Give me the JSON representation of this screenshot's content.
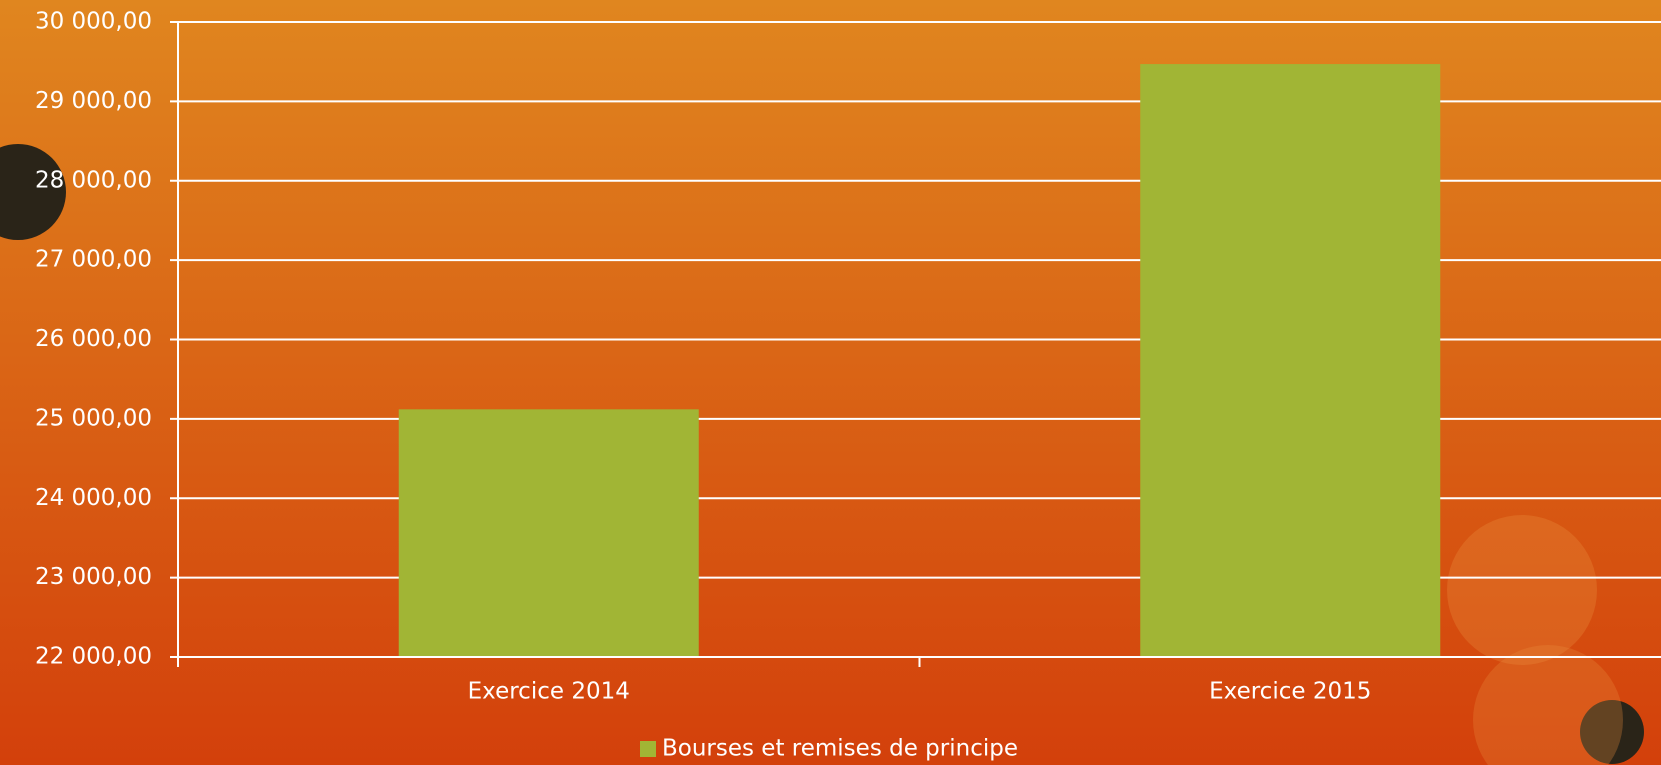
{
  "chart_data": {
    "type": "bar",
    "categories": [
      "Exercice 2014",
      "Exercice 2015"
    ],
    "series": [
      {
        "name": "Bourses et remises de principe",
        "color": "#a1b535",
        "values": [
          25120,
          29470
        ]
      }
    ],
    "ylim": [
      22000,
      30000
    ],
    "yticks": [
      {
        "value": 22000,
        "label": "22 000,00"
      },
      {
        "value": 23000,
        "label": "23 000,00"
      },
      {
        "value": 24000,
        "label": "24 000,00"
      },
      {
        "value": 25000,
        "label": "25 000,00"
      },
      {
        "value": 26000,
        "label": "26 000,00"
      },
      {
        "value": 27000,
        "label": "27 000,00"
      },
      {
        "value": 28000,
        "label": "28 000,00"
      },
      {
        "value": 29000,
        "label": "29 000,00"
      },
      {
        "value": 30000,
        "label": "30 000,00"
      }
    ],
    "grid": true,
    "legend": "bottom"
  }
}
